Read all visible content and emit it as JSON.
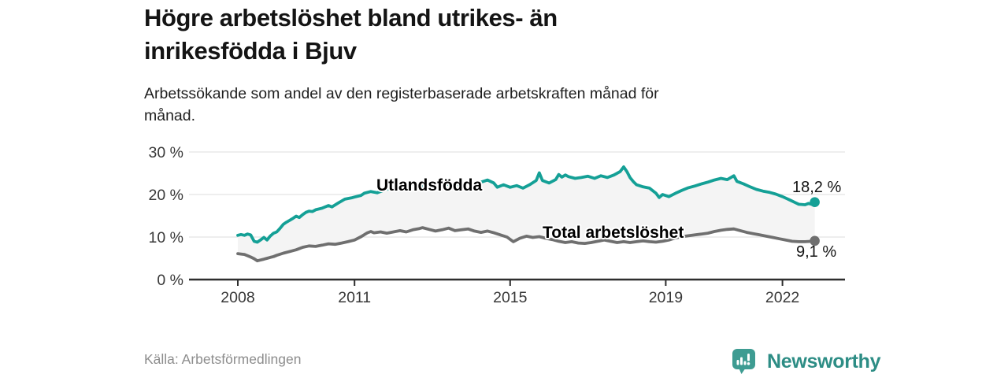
{
  "header": {
    "title_line1": "Högre arbetslöshet bland utrikes- än",
    "title_line2": "inrikesfödda i Bjuv",
    "subtitle_line1": "Arbetssökande som andel av den registerbaserade arbetskraften månad för",
    "subtitle_line2": "månad."
  },
  "chart_data": {
    "type": "line",
    "title": "Högre arbetslöshet bland utrikes- än inrikesfödda i Bjuv",
    "subtitle": "Arbetssökande som andel av den registerbaserade arbetskraften månad för månad.",
    "unit": "%",
    "x_ticks": [
      2008,
      2011,
      2015,
      2019,
      2022
    ],
    "y_ticks": [
      0,
      10,
      20,
      30
    ],
    "y_tick_labels": [
      "0 %",
      "10 %",
      "20 %",
      "30 %"
    ],
    "ylim": [
      0,
      30
    ],
    "grid": "horizontal-only",
    "legend_position": "inline-on-lines",
    "fill_between_color": "#f4f4f4",
    "axis_color": "#2e2e2e",
    "gridline_color": "#e4e4e4",
    "series": [
      {
        "name": "Utlandsfödda",
        "color": "#14a096",
        "end_label": "18,2 %",
        "end_value": 18.2,
        "points": [
          [
            2008.0,
            10.4
          ],
          [
            2008.08,
            10.6
          ],
          [
            2008.17,
            10.4
          ],
          [
            2008.25,
            10.7
          ],
          [
            2008.33,
            10.5
          ],
          [
            2008.42,
            9.0
          ],
          [
            2008.5,
            8.8
          ],
          [
            2008.58,
            9.3
          ],
          [
            2008.67,
            9.9
          ],
          [
            2008.75,
            9.3
          ],
          [
            2008.83,
            10.2
          ],
          [
            2008.92,
            10.9
          ],
          [
            2009.0,
            11.2
          ],
          [
            2009.08,
            12.0
          ],
          [
            2009.17,
            13.0
          ],
          [
            2009.25,
            13.5
          ],
          [
            2009.33,
            13.9
          ],
          [
            2009.42,
            14.4
          ],
          [
            2009.5,
            14.9
          ],
          [
            2009.58,
            14.6
          ],
          [
            2009.67,
            15.3
          ],
          [
            2009.75,
            15.8
          ],
          [
            2009.83,
            16.1
          ],
          [
            2009.92,
            16.0
          ],
          [
            2010.0,
            16.4
          ],
          [
            2010.17,
            16.8
          ],
          [
            2010.33,
            17.4
          ],
          [
            2010.42,
            17.1
          ],
          [
            2010.58,
            18.0
          ],
          [
            2010.75,
            18.9
          ],
          [
            2010.92,
            19.2
          ],
          [
            2011.0,
            19.4
          ],
          [
            2011.17,
            19.8
          ],
          [
            2011.25,
            20.3
          ],
          [
            2011.42,
            20.7
          ],
          [
            2011.58,
            20.4
          ],
          [
            2011.75,
            21.0
          ],
          [
            2011.92,
            21.5
          ],
          [
            2012.08,
            21.8
          ],
          [
            2012.25,
            22.3
          ],
          [
            2012.42,
            22.6
          ],
          [
            2012.58,
            22.3
          ],
          [
            2012.75,
            22.0
          ],
          [
            2012.92,
            22.3
          ],
          [
            2013.08,
            22.5
          ],
          [
            2013.25,
            22.7
          ],
          [
            2013.42,
            22.4
          ],
          [
            2013.58,
            22.2
          ],
          [
            2013.75,
            22.5
          ],
          [
            2013.92,
            22.7
          ],
          [
            2014.08,
            22.5
          ],
          [
            2014.25,
            22.9
          ],
          [
            2014.42,
            23.4
          ],
          [
            2014.58,
            22.7
          ],
          [
            2014.67,
            21.7
          ],
          [
            2014.83,
            22.3
          ],
          [
            2015.0,
            21.7
          ],
          [
            2015.17,
            22.1
          ],
          [
            2015.33,
            21.5
          ],
          [
            2015.5,
            22.3
          ],
          [
            2015.67,
            23.3
          ],
          [
            2015.75,
            25.1
          ],
          [
            2015.83,
            23.3
          ],
          [
            2016.0,
            22.7
          ],
          [
            2016.17,
            23.5
          ],
          [
            2016.25,
            24.7
          ],
          [
            2016.33,
            24.1
          ],
          [
            2016.42,
            24.6
          ],
          [
            2016.5,
            24.2
          ],
          [
            2016.67,
            23.8
          ],
          [
            2016.83,
            24.0
          ],
          [
            2017.0,
            24.3
          ],
          [
            2017.17,
            23.8
          ],
          [
            2017.33,
            24.4
          ],
          [
            2017.5,
            24.0
          ],
          [
            2017.67,
            24.6
          ],
          [
            2017.83,
            25.4
          ],
          [
            2017.92,
            26.5
          ],
          [
            2018.0,
            25.4
          ],
          [
            2018.08,
            24.0
          ],
          [
            2018.17,
            23.0
          ],
          [
            2018.25,
            22.3
          ],
          [
            2018.42,
            21.8
          ],
          [
            2018.58,
            21.5
          ],
          [
            2018.75,
            20.3
          ],
          [
            2018.83,
            19.3
          ],
          [
            2018.92,
            20.0
          ],
          [
            2019.08,
            19.5
          ],
          [
            2019.25,
            20.3
          ],
          [
            2019.42,
            21.0
          ],
          [
            2019.58,
            21.6
          ],
          [
            2019.75,
            22.0
          ],
          [
            2019.92,
            22.5
          ],
          [
            2020.08,
            22.9
          ],
          [
            2020.25,
            23.4
          ],
          [
            2020.42,
            23.8
          ],
          [
            2020.58,
            23.5
          ],
          [
            2020.75,
            24.4
          ],
          [
            2020.83,
            23.1
          ],
          [
            2021.0,
            22.5
          ],
          [
            2021.17,
            21.8
          ],
          [
            2021.33,
            21.2
          ],
          [
            2021.5,
            20.8
          ],
          [
            2021.67,
            20.5
          ],
          [
            2021.83,
            20.1
          ],
          [
            2022.0,
            19.5
          ],
          [
            2022.17,
            18.8
          ],
          [
            2022.33,
            18.1
          ],
          [
            2022.42,
            17.7
          ],
          [
            2022.58,
            17.6
          ],
          [
            2022.67,
            17.9
          ],
          [
            2022.75,
            17.7
          ],
          [
            2022.83,
            18.2
          ]
        ]
      },
      {
        "name": "Total arbetslöshet",
        "color": "#6f6f6f",
        "end_label": "9,1 %",
        "end_value": 9.1,
        "points": [
          [
            2008.0,
            6.1
          ],
          [
            2008.08,
            6.0
          ],
          [
            2008.17,
            5.9
          ],
          [
            2008.25,
            5.6
          ],
          [
            2008.33,
            5.3
          ],
          [
            2008.42,
            4.9
          ],
          [
            2008.5,
            4.4
          ],
          [
            2008.58,
            4.6
          ],
          [
            2008.67,
            4.8
          ],
          [
            2008.75,
            5.0
          ],
          [
            2008.83,
            5.2
          ],
          [
            2008.92,
            5.4
          ],
          [
            2009.0,
            5.7
          ],
          [
            2009.17,
            6.2
          ],
          [
            2009.33,
            6.6
          ],
          [
            2009.5,
            7.0
          ],
          [
            2009.67,
            7.6
          ],
          [
            2009.83,
            7.9
          ],
          [
            2010.0,
            7.8
          ],
          [
            2010.17,
            8.1
          ],
          [
            2010.33,
            8.4
          ],
          [
            2010.5,
            8.3
          ],
          [
            2010.67,
            8.6
          ],
          [
            2010.83,
            8.9
          ],
          [
            2011.0,
            9.3
          ],
          [
            2011.17,
            10.1
          ],
          [
            2011.33,
            11.0
          ],
          [
            2011.42,
            11.3
          ],
          [
            2011.5,
            11.0
          ],
          [
            2011.67,
            11.2
          ],
          [
            2011.83,
            10.9
          ],
          [
            2012.0,
            11.2
          ],
          [
            2012.17,
            11.5
          ],
          [
            2012.33,
            11.2
          ],
          [
            2012.5,
            11.7
          ],
          [
            2012.67,
            12.0
          ],
          [
            2012.75,
            12.2
          ],
          [
            2012.92,
            11.8
          ],
          [
            2013.08,
            11.4
          ],
          [
            2013.25,
            11.7
          ],
          [
            2013.42,
            12.1
          ],
          [
            2013.58,
            11.5
          ],
          [
            2013.75,
            11.7
          ],
          [
            2013.92,
            11.9
          ],
          [
            2014.08,
            11.4
          ],
          [
            2014.25,
            11.1
          ],
          [
            2014.42,
            11.4
          ],
          [
            2014.58,
            11.0
          ],
          [
            2014.75,
            10.5
          ],
          [
            2014.92,
            10.0
          ],
          [
            2015.08,
            8.9
          ],
          [
            2015.25,
            9.7
          ],
          [
            2015.42,
            10.2
          ],
          [
            2015.58,
            9.9
          ],
          [
            2015.75,
            10.1
          ],
          [
            2015.92,
            9.7
          ],
          [
            2016.08,
            9.4
          ],
          [
            2016.25,
            9.0
          ],
          [
            2016.42,
            8.7
          ],
          [
            2016.58,
            8.9
          ],
          [
            2016.75,
            8.6
          ],
          [
            2016.92,
            8.5
          ],
          [
            2017.08,
            8.7
          ],
          [
            2017.25,
            9.0
          ],
          [
            2017.42,
            9.3
          ],
          [
            2017.58,
            9.0
          ],
          [
            2017.75,
            8.7
          ],
          [
            2017.92,
            8.9
          ],
          [
            2018.08,
            8.7
          ],
          [
            2018.25,
            8.9
          ],
          [
            2018.42,
            9.1
          ],
          [
            2018.58,
            8.9
          ],
          [
            2018.75,
            8.8
          ],
          [
            2018.92,
            9.0
          ],
          [
            2019.08,
            9.3
          ],
          [
            2019.25,
            9.8
          ],
          [
            2019.42,
            10.1
          ],
          [
            2019.58,
            10.3
          ],
          [
            2019.75,
            10.5
          ],
          [
            2019.92,
            10.7
          ],
          [
            2020.08,
            10.9
          ],
          [
            2020.25,
            11.3
          ],
          [
            2020.42,
            11.6
          ],
          [
            2020.58,
            11.8
          ],
          [
            2020.75,
            11.9
          ],
          [
            2020.92,
            11.5
          ],
          [
            2021.08,
            11.1
          ],
          [
            2021.25,
            10.8
          ],
          [
            2021.42,
            10.5
          ],
          [
            2021.58,
            10.2
          ],
          [
            2021.75,
            9.9
          ],
          [
            2021.92,
            9.6
          ],
          [
            2022.08,
            9.3
          ],
          [
            2022.25,
            9.0
          ],
          [
            2022.42,
            8.9
          ],
          [
            2022.58,
            8.9
          ],
          [
            2022.75,
            9.0
          ],
          [
            2022.83,
            9.1
          ]
        ]
      }
    ]
  },
  "footer": {
    "source": "Källa: Arbetsförmedlingen",
    "brand_name": "Newsworthy",
    "brand_color": "#2d8d85",
    "brand_icon": "newsworthy-speech-bubble-bar-chart-icon"
  }
}
